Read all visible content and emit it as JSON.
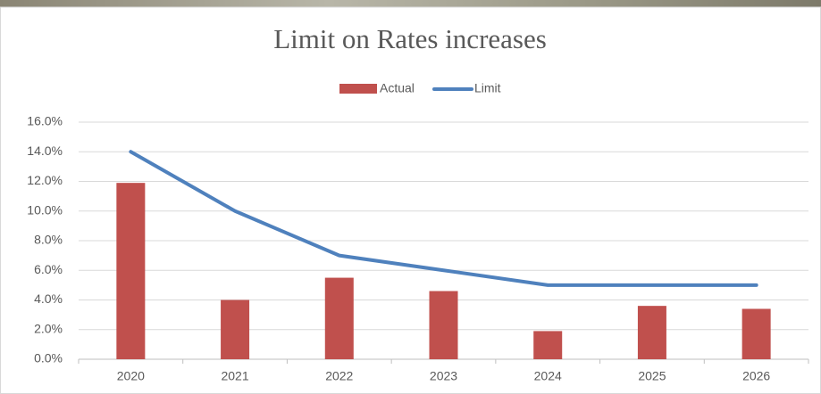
{
  "chart_data": {
    "type": "combo",
    "title": "Limit on Rates increases",
    "categories": [
      "2020",
      "2021",
      "2022",
      "2023",
      "2024",
      "2025",
      "2026"
    ],
    "series": [
      {
        "name": "Actual",
        "type": "bar",
        "color": "#c0504d",
        "values": [
          11.9,
          4.0,
          5.5,
          4.6,
          1.9,
          3.6,
          3.4
        ]
      },
      {
        "name": "Limit",
        "type": "line",
        "color": "#4f81bd",
        "values": [
          14,
          10,
          7,
          6,
          5,
          5,
          5
        ]
      }
    ],
    "ylim": [
      0,
      16
    ],
    "yticks": [
      {
        "value": 0,
        "label": "0.0%"
      },
      {
        "value": 2,
        "label": "2.0%"
      },
      {
        "value": 4,
        "label": "4.0%"
      },
      {
        "value": 6,
        "label": "6.0%"
      },
      {
        "value": 8,
        "label": "8.0%"
      },
      {
        "value": 10,
        "label": "10.0%"
      },
      {
        "value": 12,
        "label": "12.0%"
      },
      {
        "value": 14,
        "label": "14.0%"
      },
      {
        "value": 16,
        "label": "16.0%"
      }
    ],
    "grid": true,
    "legend": "top"
  }
}
